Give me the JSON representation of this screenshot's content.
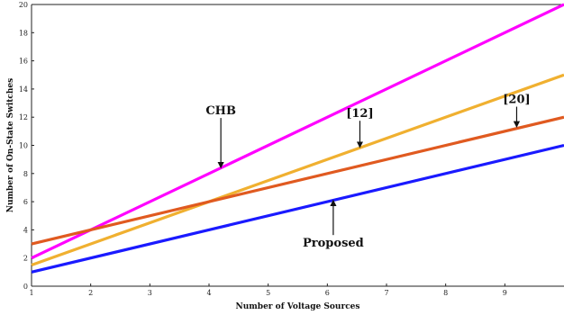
{
  "chart_data": {
    "type": "line",
    "title": "",
    "xlabel": "Number of Voltage Sources",
    "ylabel": "Number of On-State Switches",
    "xlim": [
      1,
      10
    ],
    "ylim": [
      0,
      20
    ],
    "x_ticks": [
      1,
      2,
      3,
      4,
      5,
      6,
      7,
      8,
      9
    ],
    "y_ticks": [
      0,
      2,
      4,
      6,
      8,
      10,
      12,
      14,
      16,
      18,
      20
    ],
    "grid": false,
    "legend": "none",
    "series": [
      {
        "name": "CHB",
        "color": "#ff00ff",
        "x": [
          1,
          10
        ],
        "y": [
          2,
          20
        ]
      },
      {
        "name": "[12]",
        "color": "#f0b030",
        "x": [
          1,
          10
        ],
        "y": [
          1.5,
          15
        ]
      },
      {
        "name": "[20]",
        "color": "#e05a20",
        "x": [
          1,
          10
        ],
        "y": [
          3,
          12
        ]
      },
      {
        "name": "Proposed",
        "color": "#1a1aff",
        "x": [
          1,
          10
        ],
        "y": [
          1,
          10
        ]
      }
    ],
    "annotations": [
      {
        "text": "CHB",
        "series": "CHB",
        "label_at": [
          4.2,
          12.2
        ],
        "arrow_to": [
          4.2,
          8.4
        ],
        "arrow_direction": "down"
      },
      {
        "text": "[12]",
        "series": "[12]",
        "label_at": [
          6.55,
          12.0
        ],
        "arrow_to": [
          6.55,
          9.85
        ],
        "arrow_direction": "down"
      },
      {
        "text": "[20]",
        "series": "[20]",
        "label_at": [
          9.2,
          13.0
        ],
        "arrow_to": [
          9.2,
          11.3
        ],
        "arrow_direction": "down"
      },
      {
        "text": "Proposed",
        "series": "Proposed",
        "label_at": [
          6.1,
          2.8
        ],
        "arrow_to": [
          6.1,
          6.1
        ],
        "arrow_direction": "up"
      }
    ]
  }
}
